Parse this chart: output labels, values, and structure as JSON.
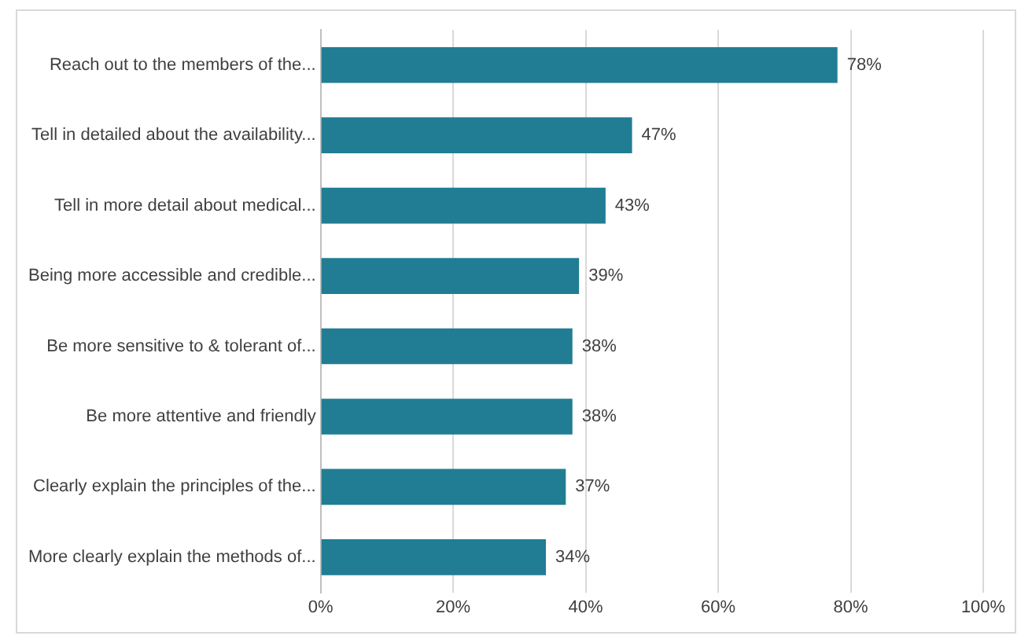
{
  "chart_data": {
    "type": "bar",
    "orientation": "horizontal",
    "categories": [
      "Reach out to the members of the...",
      "Tell in detailed about the availability...",
      "Tell in more detail about medical...",
      "Being more accessible and credible...",
      "Be more sensitive to & tolerant of...",
      "Be more attentive and friendly",
      "Clearly explain the principles of the...",
      "More clearly explain the methods of..."
    ],
    "values": [
      78,
      47,
      43,
      39,
      38,
      38,
      37,
      34
    ],
    "value_labels": [
      "78%",
      "47%",
      "43%",
      "39%",
      "38%",
      "38%",
      "37%",
      "34%"
    ],
    "color": "#217d94",
    "xlim": [
      0,
      100
    ],
    "xticks": [
      {
        "value": 0,
        "label": "0%"
      },
      {
        "value": 20,
        "label": "20%"
      },
      {
        "value": 40,
        "label": "40%"
      },
      {
        "value": 60,
        "label": "60%"
      },
      {
        "value": 80,
        "label": "80%"
      },
      {
        "value": 100,
        "label": "100%"
      }
    ],
    "grid": "x",
    "legend": false
  }
}
